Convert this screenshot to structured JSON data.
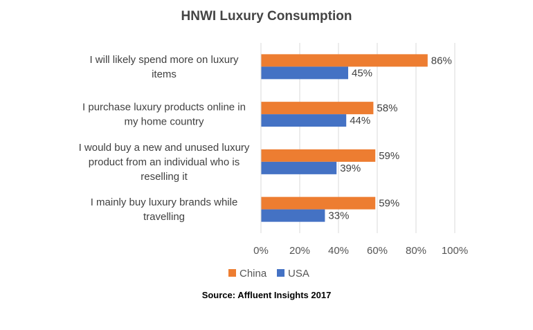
{
  "chart_data": {
    "type": "bar",
    "orientation": "horizontal",
    "title": "HNWI  Luxury Consumption",
    "source": "Source: Affluent Insights 2017",
    "categories": [
      [
        "I will likely spend more on luxury",
        "items"
      ],
      [
        "I purchase luxury products online in",
        "my home country"
      ],
      [
        "I would buy a new and unused luxury",
        "product from an individual who is",
        "reselling it"
      ],
      [
        "I mainly buy luxury brands while",
        "travelling"
      ]
    ],
    "series": [
      {
        "name": "China",
        "color": "#ED7D31",
        "values": [
          86,
          58,
          59,
          59
        ],
        "labels": [
          "86%",
          "58%",
          "59%",
          "59%"
        ]
      },
      {
        "name": "USA",
        "color": "#4472C4",
        "values": [
          45,
          44,
          39,
          33
        ],
        "labels": [
          "45%",
          "44%",
          "39%",
          "33%"
        ]
      }
    ],
    "xlim": [
      0,
      100
    ],
    "xticks": [
      "0%",
      "20%",
      "40%",
      "60%",
      "80%",
      "100%"
    ],
    "grid": true,
    "legend": "bottom"
  }
}
